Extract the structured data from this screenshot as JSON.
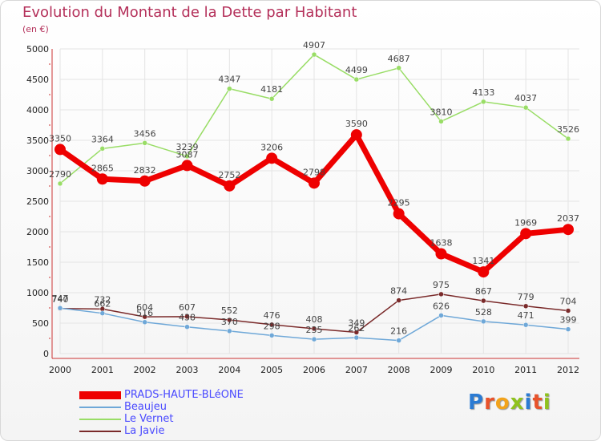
{
  "header": {
    "title": "Evolution du Montant de la Dette par Habitant",
    "subtitle": "(en €)"
  },
  "logo": {
    "text": "Proxiti",
    "colors": [
      "#2b7bd3",
      "#e8522a",
      "#f2a31c",
      "#8fc21e",
      "#2b7bd3",
      "#e8522a",
      "#8fc21e"
    ]
  },
  "chart_data": {
    "type": "line",
    "title": "Evolution du Montant de la Dette par Habitant",
    "subtitle": "(en €)",
    "categories": [
      "2000",
      "2001",
      "2002",
      "2003",
      "2004",
      "2005",
      "2006",
      "2007",
      "2008",
      "2009",
      "2010",
      "2011",
      "2012"
    ],
    "ylim": [
      0,
      5000
    ],
    "yticks": [
      "0",
      "500",
      "1000",
      "1500",
      "2000",
      "2500",
      "3000",
      "3500",
      "4000",
      "4500",
      "5000"
    ],
    "grid": true,
    "legend_position": "bottom-left",
    "series": [
      {
        "name": "PRADS-HAUTE-BLéONE",
        "color": "#ee0000",
        "values": [
          3350,
          2865,
          2832,
          3087,
          2752,
          3206,
          2798,
          3590,
          2295,
          1638,
          1341,
          1969,
          2037
        ],
        "labels": [
          "3350",
          "2865",
          "2832",
          "3087",
          "2752",
          "3206",
          "2798",
          "3590",
          "2295",
          "1638",
          "1341",
          "1969",
          "2037"
        ]
      },
      {
        "name": "Beaujeu",
        "color": "#6fa8d8",
        "values": [
          747,
          662,
          516,
          438,
          370,
          298,
          235,
          262,
          216,
          626,
          528,
          471,
          399
        ],
        "labels": [
          "747",
          "662",
          "516",
          "438",
          "370",
          "298",
          "235",
          "262",
          "216",
          "626",
          "528",
          "471",
          "399"
        ]
      },
      {
        "name": "Le Vernet",
        "color": "#99dd66",
        "values": [
          2790,
          3364,
          3456,
          3239,
          4347,
          4181,
          4907,
          4499,
          4687,
          3810,
          4133,
          4037,
          3526
        ],
        "labels": [
          "2790",
          "3364",
          "3456",
          "3239",
          "4347",
          "4181",
          "4907",
          "4499",
          "4687",
          "3810",
          "4133",
          "4037",
          "3526"
        ]
      },
      {
        "name": "La Javie",
        "color": "#7a2a2a",
        "values": [
          740,
          732,
          604,
          607,
          552,
          476,
          408,
          349,
          874,
          975,
          867,
          779,
          704
        ],
        "labels": [
          "740",
          "732",
          "604",
          "607",
          "552",
          "476",
          "408",
          "349",
          "874",
          "975",
          "867",
          "779",
          "704"
        ]
      }
    ]
  }
}
